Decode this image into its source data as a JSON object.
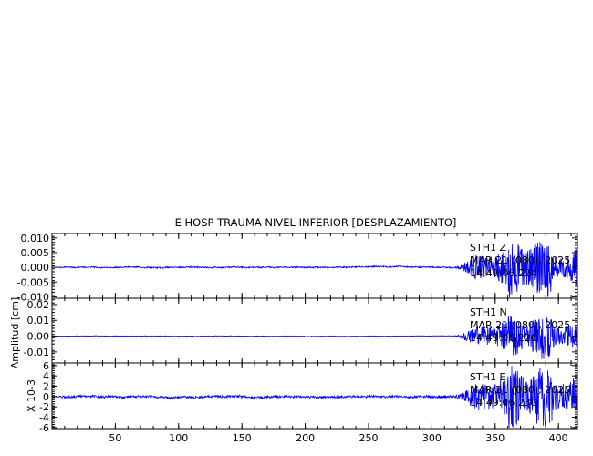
{
  "chart_data": {
    "type": "line",
    "title": "E HOSP TRAUMA NIVEL INFERIOR [DESPLAZAMIENTO]",
    "ylabel": "Amplitud [cm]",
    "xlim": [
      0,
      415
    ],
    "x_ticks": [
      "50",
      "100",
      "150",
      "200",
      "250",
      "300",
      "350",
      "400"
    ],
    "x_tick_values": [
      50,
      100,
      150,
      200,
      250,
      300,
      350,
      400
    ],
    "line_color": "#0000ff",
    "panels": [
      {
        "channel": "Z",
        "ylim": [
          -0.0105,
          0.0115
        ],
        "y_ticks": [
          "0.010",
          "0.005",
          "0.000",
          "-0.005",
          "-0.010"
        ],
        "y_tick_values": [
          0.01,
          0.005,
          0.0,
          -0.005,
          -0.01
        ],
        "station": "STH1",
        "date": "MAR 21 (080), 2025",
        "time": "14:49:06.224",
        "quiet_amplitude": 0.0006,
        "strong_amplitude": 0.0085,
        "strong_onset": 318
      },
      {
        "channel": "N",
        "ylim": [
          -0.017,
          0.024
        ],
        "y_ticks": [
          "0.02",
          "0.01",
          "0.00",
          "-0.01"
        ],
        "y_tick_values": [
          0.02,
          0.01,
          0.0,
          -0.01
        ],
        "station": "STH1",
        "date": "MAR 21 (080), 2025",
        "time": "14:49:06.226",
        "quiet_amplitude": 0.0005,
        "strong_amplitude": 0.012,
        "strong_onset": 318
      },
      {
        "channel": "E",
        "ylim": [
          -6.2,
          6.5
        ],
        "y_ticks": [
          "6",
          "4",
          "2",
          "0",
          "-2",
          "-4",
          "-6"
        ],
        "y_tick_values": [
          6,
          4,
          2,
          0,
          -2,
          -4,
          -6
        ],
        "y_multiplier": "X 10-3",
        "station": "STH1",
        "date": "MAR 21 (080), 2025",
        "time": "14:49:06.230",
        "quiet_amplitude": 0.6,
        "strong_amplitude": 5.2,
        "strong_onset": 318
      }
    ]
  }
}
